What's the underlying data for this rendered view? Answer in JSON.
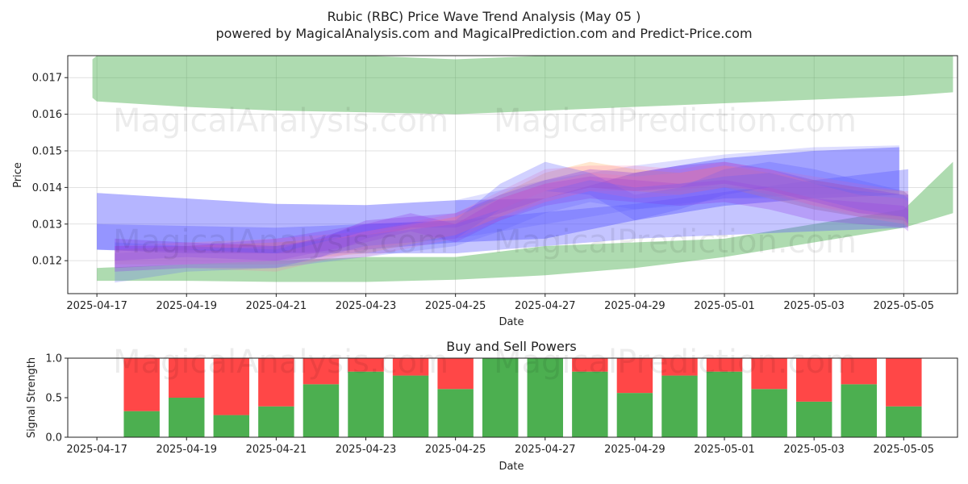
{
  "title_line1": "Rubic (RBC) Price Wave Trend Analysis (May 05 )",
  "title_line2": "powered by MagicalAnalysis.com and MagicalPrediction.com and Predict-Price.com",
  "watermarks": [
    "MagicalAnalysis.com",
    "MagicalPrediction.com"
  ],
  "chart_data": [
    {
      "type": "area",
      "title": "",
      "xlabel": "Date",
      "ylabel": "Price",
      "ylim": [
        0.0111,
        0.0176
      ],
      "yticks": [
        0.012,
        0.013,
        0.014,
        0.015,
        0.016,
        0.017
      ],
      "ytick_labels": [
        "0.012",
        "0.013",
        "0.014",
        "0.015",
        "0.016",
        "0.017"
      ],
      "xticks": [
        "2025-04-17",
        "2025-04-19",
        "2025-04-21",
        "2025-04-23",
        "2025-04-25",
        "2025-04-27",
        "2025-04-29",
        "2025-05-01",
        "2025-05-03",
        "2025-05-05"
      ],
      "x_range_days": [
        -0.65,
        19.2
      ],
      "colors": {
        "green": "#4caf50",
        "blue": "#5a5aff",
        "purple": "#8a2be2",
        "orange": "#ff9f40",
        "pink": "#ff6fa8"
      },
      "bands": [
        {
          "name": "Green upper band",
          "color": "green",
          "opacity": 0.45,
          "x": [
            -0.1,
            0,
            2,
            4,
            6,
            8,
            10,
            12,
            14,
            16,
            18,
            19.1
          ],
          "upper": [
            0.0175,
            0.0176,
            0.0176,
            0.0176,
            0.0176,
            0.0175,
            0.0176,
            0.0176,
            0.0176,
            0.0176,
            0.0176,
            0.0176
          ],
          "lower": [
            0.01645,
            0.01635,
            0.0162,
            0.0161,
            0.01605,
            0.016,
            0.0161,
            0.0162,
            0.0163,
            0.0164,
            0.0165,
            0.0166
          ]
        },
        {
          "name": "Green lower band",
          "color": "green",
          "opacity": 0.45,
          "x": [
            0,
            2,
            4,
            6,
            8,
            10,
            12,
            14,
            16,
            18,
            19.1
          ],
          "upper": [
            0.0118,
            0.0119,
            0.012,
            0.0121,
            0.0121,
            0.0124,
            0.0125,
            0.0126,
            0.013,
            0.0134,
            0.0147
          ],
          "lower": [
            0.01145,
            0.01145,
            0.01142,
            0.01142,
            0.01148,
            0.0116,
            0.0118,
            0.0121,
            0.0125,
            0.0129,
            0.0133
          ]
        },
        {
          "name": "Blue wide band",
          "color": "blue",
          "opacity": 0.45,
          "x": [
            0,
            2,
            4,
            6,
            8,
            10,
            12,
            14,
            16,
            17.9
          ],
          "upper": [
            0.01385,
            0.0137,
            0.01355,
            0.01352,
            0.01365,
            0.0137,
            0.0144,
            0.0148,
            0.015,
            0.0151
          ],
          "lower": [
            0.0123,
            0.0122,
            0.0122,
            0.0123,
            0.0125,
            0.0126,
            0.0131,
            0.0135,
            0.0137,
            0.0138
          ]
        },
        {
          "name": "Blue light band",
          "color": "blue",
          "opacity": 0.2,
          "x": [
            8,
            10,
            12,
            14,
            16,
            17.9
          ],
          "upper": [
            0.01365,
            0.0142,
            0.0146,
            0.0149,
            0.0151,
            0.01515
          ],
          "lower": [
            0.0126,
            0.013,
            0.0134,
            0.0137,
            0.0138,
            0.0139
          ]
        },
        {
          "name": "Steel channel",
          "color": "blue",
          "opacity": 0.35,
          "x": [
            0,
            4,
            8,
            12,
            16,
            18.1
          ],
          "upper": [
            0.013,
            0.0129,
            0.0131,
            0.01355,
            0.0142,
            0.0145
          ],
          "lower": [
            0.0123,
            0.0122,
            0.0122,
            0.0126,
            0.0128,
            0.0129
          ]
        },
        {
          "name": "Orange wave 1",
          "color": "orange",
          "opacity": 0.25,
          "x": [
            0.4,
            2,
            4,
            6,
            8,
            9,
            10,
            11,
            12,
            13,
            14,
            15,
            16,
            17,
            18,
            18.1
          ],
          "upper": [
            0.0123,
            0.0124,
            0.0125,
            0.0127,
            0.0132,
            0.0138,
            0.0144,
            0.0147,
            0.0145,
            0.0144,
            0.0146,
            0.0144,
            0.0142,
            0.014,
            0.0139,
            0.0138
          ],
          "lower": [
            0.0119,
            0.0119,
            0.012,
            0.0122,
            0.0127,
            0.0132,
            0.0137,
            0.014,
            0.0139,
            0.0138,
            0.014,
            0.0137,
            0.0134,
            0.0132,
            0.0131,
            0.013
          ]
        },
        {
          "name": "Pink wave 1",
          "color": "pink",
          "opacity": 0.22,
          "x": [
            0.4,
            2,
            4,
            6,
            8,
            9,
            10,
            11,
            12,
            13,
            14,
            15,
            16,
            17,
            18,
            18.1
          ],
          "upper": [
            0.0124,
            0.0125,
            0.0126,
            0.0128,
            0.0133,
            0.0139,
            0.0145,
            0.0146,
            0.0146,
            0.0145,
            0.0147,
            0.0145,
            0.0143,
            0.0141,
            0.0139,
            0.0139
          ],
          "lower": [
            0.0118,
            0.0119,
            0.0119,
            0.0121,
            0.0126,
            0.0131,
            0.0136,
            0.0139,
            0.0139,
            0.0139,
            0.0141,
            0.0138,
            0.0135,
            0.0133,
            0.0131,
            0.0129
          ]
        },
        {
          "name": "Purple wave 1",
          "color": "purple",
          "opacity": 0.28,
          "x": [
            0.4,
            2,
            4,
            5,
            6,
            7,
            8,
            9,
            10,
            11,
            12,
            13,
            14,
            15,
            16,
            17,
            18,
            18.1
          ],
          "upper": [
            0.0126,
            0.0125,
            0.0124,
            0.0126,
            0.0131,
            0.0132,
            0.0133,
            0.0138,
            0.0142,
            0.0145,
            0.0144,
            0.0146,
            0.0147,
            0.0145,
            0.0142,
            0.014,
            0.0138,
            0.0138
          ],
          "lower": [
            0.012,
            0.0121,
            0.012,
            0.0121,
            0.0126,
            0.0129,
            0.0129,
            0.0133,
            0.0137,
            0.014,
            0.0139,
            0.014,
            0.0141,
            0.0139,
            0.0136,
            0.0133,
            0.0132,
            0.0131
          ]
        },
        {
          "name": "Blue wave 1",
          "color": "blue",
          "opacity": 0.28,
          "x": [
            0.4,
            2,
            4,
            6,
            8,
            9,
            10,
            11,
            12,
            13,
            14,
            15,
            16,
            17,
            18,
            18.1
          ],
          "upper": [
            0.0125,
            0.0124,
            0.0123,
            0.013,
            0.0131,
            0.0141,
            0.0147,
            0.0144,
            0.0138,
            0.014,
            0.0145,
            0.0147,
            0.0145,
            0.0142,
            0.0139,
            0.0138
          ],
          "lower": [
            0.0117,
            0.0118,
            0.0118,
            0.0124,
            0.0126,
            0.0134,
            0.0139,
            0.0138,
            0.0131,
            0.0134,
            0.0138,
            0.014,
            0.0137,
            0.0134,
            0.0132,
            0.013
          ]
        },
        {
          "name": "Purple wave 2",
          "color": "purple",
          "opacity": 0.25,
          "x": [
            0.4,
            2,
            4,
            6,
            7,
            8,
            9,
            10,
            11,
            12,
            13,
            14,
            15,
            16,
            17,
            18,
            18.1
          ],
          "upper": [
            0.0124,
            0.0124,
            0.0126,
            0.013,
            0.0133,
            0.013,
            0.0137,
            0.0141,
            0.0143,
            0.0142,
            0.0141,
            0.0142,
            0.014,
            0.0137,
            0.0136,
            0.0135,
            0.0134
          ],
          "lower": [
            0.0118,
            0.0119,
            0.012,
            0.0125,
            0.0128,
            0.0125,
            0.0131,
            0.0135,
            0.0137,
            0.0136,
            0.0135,
            0.0136,
            0.0134,
            0.0131,
            0.013,
            0.0129,
            0.0128
          ]
        },
        {
          "name": "Pink wave 2",
          "color": "pink",
          "opacity": 0.2,
          "x": [
            0.4,
            2,
            4,
            6,
            8,
            9,
            10,
            11,
            12,
            13,
            14,
            15,
            16,
            17,
            18,
            18.1
          ],
          "upper": [
            0.0122,
            0.0123,
            0.0122,
            0.0128,
            0.0132,
            0.0137,
            0.0141,
            0.0144,
            0.0143,
            0.0144,
            0.0146,
            0.0145,
            0.0141,
            0.0138,
            0.0137,
            0.0136
          ],
          "lower": [
            0.0117,
            0.0118,
            0.0117,
            0.0123,
            0.0127,
            0.0132,
            0.0136,
            0.0139,
            0.0137,
            0.0138,
            0.014,
            0.0139,
            0.0135,
            0.0132,
            0.013,
            0.0129
          ]
        },
        {
          "name": "Blue wave 2",
          "color": "blue",
          "opacity": 0.22,
          "x": [
            0.4,
            2,
            4,
            6,
            8,
            9,
            10,
            11,
            12,
            13,
            14,
            15,
            16,
            17,
            18,
            18.1
          ],
          "upper": [
            0.0122,
            0.0123,
            0.0124,
            0.0127,
            0.013,
            0.0134,
            0.0139,
            0.0142,
            0.014,
            0.0141,
            0.0143,
            0.0144,
            0.0141,
            0.0139,
            0.0138,
            0.0137
          ],
          "lower": [
            0.0114,
            0.0117,
            0.0118,
            0.0121,
            0.0124,
            0.0128,
            0.0133,
            0.0136,
            0.0134,
            0.0135,
            0.0137,
            0.0137,
            0.0134,
            0.0132,
            0.0131,
            0.013
          ]
        }
      ]
    },
    {
      "type": "bar",
      "title": "Buy and Sell Powers",
      "xlabel": "Date",
      "ylabel": "Signal Strength",
      "ylim": [
        0,
        1.0
      ],
      "yticks": [
        0.0,
        0.5,
        1.0
      ],
      "ytick_labels": [
        "0.0",
        "0.5",
        "1.0"
      ],
      "xticks": [
        "2025-04-17",
        "2025-04-19",
        "2025-04-21",
        "2025-04-23",
        "2025-04-25",
        "2025-04-27",
        "2025-04-29",
        "2025-05-01",
        "2025-05-03",
        "2025-05-05"
      ],
      "x_range_days": [
        -0.65,
        19.2
      ],
      "colors": {
        "buy": "#4caf50",
        "sell": "#ff4747"
      },
      "categories": [
        "2025-04-18",
        "2025-04-19",
        "2025-04-20",
        "2025-04-21",
        "2025-04-22",
        "2025-04-23",
        "2025-04-24",
        "2025-04-25",
        "2025-04-26",
        "2025-04-27",
        "2025-04-28",
        "2025-04-29",
        "2025-04-30",
        "2025-05-01",
        "2025-05-02",
        "2025-05-03",
        "2025-05-04",
        "2025-05-05"
      ],
      "series": [
        {
          "name": "Buy",
          "values": [
            0.33,
            0.5,
            0.28,
            0.39,
            0.67,
            0.83,
            0.78,
            0.61,
            1.0,
            1.0,
            0.83,
            0.56,
            0.78,
            0.83,
            0.61,
            0.45,
            0.67,
            0.39
          ]
        },
        {
          "name": "Sell",
          "values": [
            0.67,
            0.5,
            0.72,
            0.61,
            0.33,
            0.17,
            0.22,
            0.39,
            0.0,
            0.0,
            0.17,
            0.44,
            0.22,
            0.17,
            0.39,
            0.55,
            0.33,
            0.61
          ]
        }
      ]
    }
  ]
}
